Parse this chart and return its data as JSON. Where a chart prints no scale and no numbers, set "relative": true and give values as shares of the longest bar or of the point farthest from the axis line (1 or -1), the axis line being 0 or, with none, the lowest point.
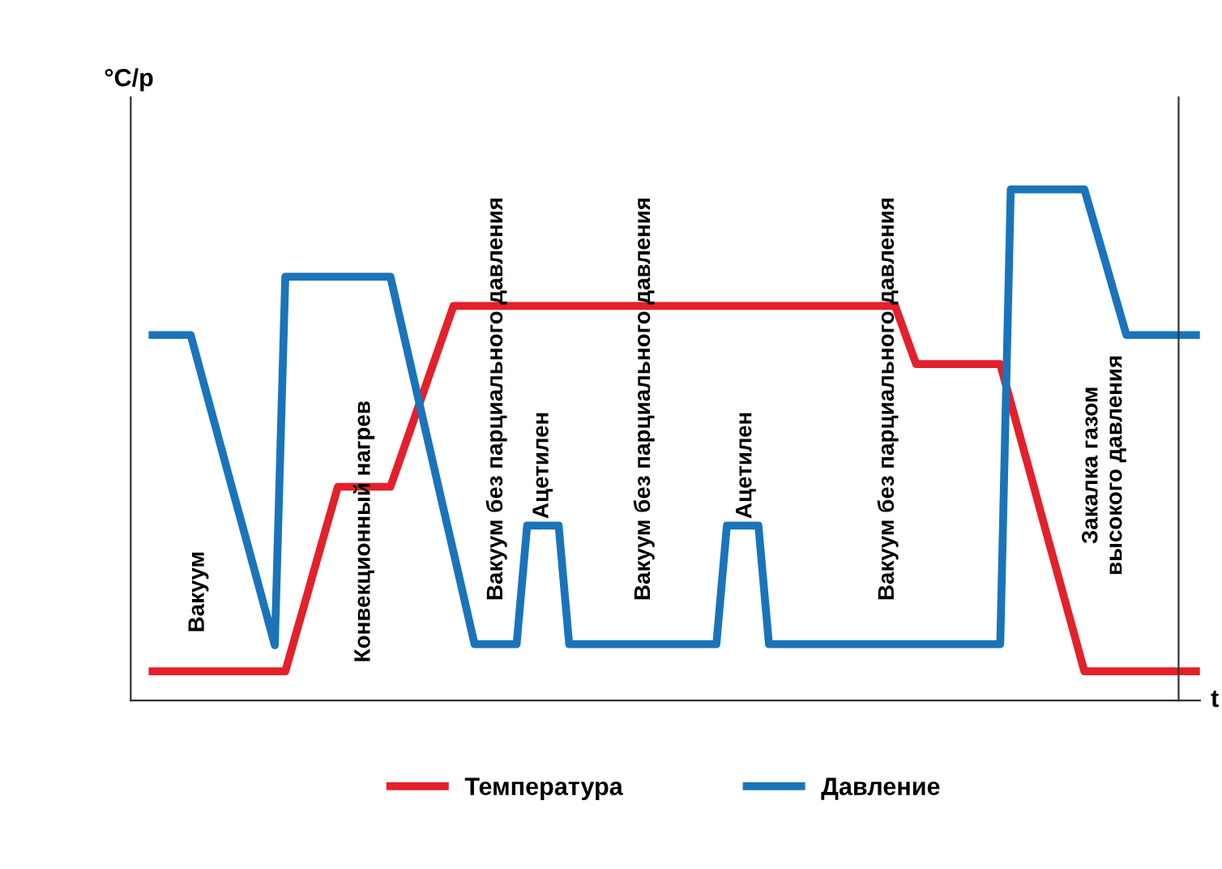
{
  "chart_data": {
    "type": "line",
    "relative": true,
    "ylabel": "°C/p",
    "xlabel": "t",
    "legend": "bottom",
    "marker": "none",
    "line_style": "solid",
    "categories": [
      null,
      null,
      null,
      null,
      null,
      null,
      null,
      null,
      null,
      null,
      null,
      null,
      null,
      null,
      null,
      null,
      null,
      null,
      null,
      null,
      null,
      null,
      null,
      null,
      null,
      null,
      null,
      null,
      null,
      null,
      null,
      null,
      null,
      null,
      null,
      null,
      null,
      null,
      null,
      null,
      null,
      null,
      null,
      null,
      null,
      null,
      null,
      null,
      null,
      null,
      null,
      null,
      null,
      null,
      null,
      null,
      null,
      null,
      null,
      null,
      null,
      null,
      null,
      null,
      null,
      null,
      null,
      null,
      null,
      null,
      null,
      null,
      null,
      null,
      null,
      null,
      null,
      null,
      null,
      null,
      null,
      null,
      null,
      null,
      null,
      null,
      null,
      null,
      null,
      null,
      null,
      null,
      null,
      null,
      null,
      null,
      null,
      null,
      null,
      null,
      null
    ],
    "series": [
      {
        "name": "Температура",
        "color": "#e4202a",
        "values": [
          0.057,
          0.057,
          0.057,
          0.057,
          0.057,
          0.057,
          0.057,
          0.057,
          0.057,
          0.057,
          0.057,
          0.057,
          0.057,
          0.057,
          0.129,
          0.201,
          0.274,
          0.346,
          0.418,
          0.418,
          0.418,
          0.418,
          0.418,
          0.418,
          0.477,
          0.536,
          0.595,
          0.654,
          0.713,
          0.772,
          0.772,
          0.772,
          0.772,
          0.772,
          0.772,
          0.772,
          0.772,
          0.772,
          0.772,
          0.772,
          0.772,
          0.772,
          0.772,
          0.772,
          0.772,
          0.772,
          0.772,
          0.772,
          0.772,
          0.772,
          0.772,
          0.772,
          0.772,
          0.772,
          0.772,
          0.772,
          0.772,
          0.772,
          0.772,
          0.772,
          0.772,
          0.772,
          0.772,
          0.772,
          0.772,
          0.772,
          0.772,
          0.772,
          0.772,
          0.772,
          0.772,
          0.772,
          0.715,
          0.658,
          0.658,
          0.658,
          0.658,
          0.658,
          0.658,
          0.658,
          0.658,
          0.658,
          0.583,
          0.508,
          0.433,
          0.357,
          0.282,
          0.207,
          0.132,
          0.057,
          0.057,
          0.057,
          0.057,
          0.057,
          0.057,
          0.057,
          0.057,
          0.057,
          0.057,
          0.057,
          0.057
        ]
      },
      {
        "name": "Давление",
        "color": "#1a74bb",
        "values": [
          0.715,
          0.715,
          0.715,
          0.715,
          0.715,
          0.639,
          0.563,
          0.487,
          0.411,
          0.336,
          0.26,
          0.184,
          0.108,
          0.829,
          0.829,
          0.829,
          0.829,
          0.829,
          0.829,
          0.829,
          0.829,
          0.829,
          0.829,
          0.829,
          0.739,
          0.649,
          0.559,
          0.469,
          0.379,
          0.29,
          0.2,
          0.11,
          0.11,
          0.11,
          0.11,
          0.11,
          0.342,
          0.342,
          0.342,
          0.342,
          0.11,
          0.11,
          0.11,
          0.11,
          0.11,
          0.11,
          0.11,
          0.11,
          0.11,
          0.11,
          0.11,
          0.11,
          0.11,
          0.11,
          0.11,
          0.342,
          0.342,
          0.342,
          0.342,
          0.11,
          0.11,
          0.11,
          0.11,
          0.11,
          0.11,
          0.11,
          0.11,
          0.11,
          0.11,
          0.11,
          0.11,
          0.11,
          0.11,
          0.11,
          0.11,
          0.11,
          0.11,
          0.11,
          0.11,
          0.11,
          0.11,
          0.11,
          1.0,
          1.0,
          1.0,
          1.0,
          1.0,
          1.0,
          1.0,
          1.0,
          0.929,
          0.858,
          0.786,
          0.715,
          0.715,
          0.715,
          0.715,
          0.715,
          0.715,
          0.715,
          0.715
        ]
      }
    ],
    "annotations": [
      "Вакуум",
      "Конвекционный нагрев",
      "Вакуум без парциального давления",
      "Ацетилен",
      "Вакуум без парциального давления",
      "Ацетилен",
      "Вакуум без парциального давления",
      "Закалка газом\nвысокого давления"
    ]
  }
}
